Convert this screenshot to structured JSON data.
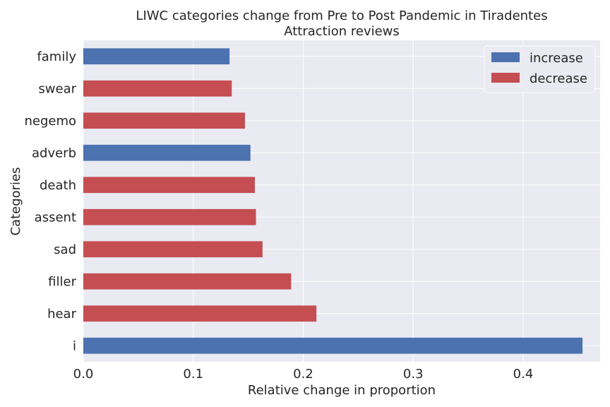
{
  "chart_data": {
    "type": "bar",
    "orientation": "horizontal",
    "title_line1": "LIWC categories change from Pre to Post Pandemic in Tiradentes",
    "title_line2": "Attraction reviews",
    "xlabel": "Relative change in proportion",
    "ylabel": "Categories",
    "xlim": [
      0,
      0.47
    ],
    "xticks": [
      0.0,
      0.1,
      0.2,
      0.3,
      0.4
    ],
    "xtick_labels": [
      "0.0",
      "0.1",
      "0.2",
      "0.3",
      "0.4"
    ],
    "grid": true,
    "legend_position": "top-right",
    "categories": [
      "i",
      "hear",
      "filler",
      "sad",
      "assent",
      "death",
      "adverb",
      "negemo",
      "swear",
      "family"
    ],
    "values": [
      0.454,
      0.212,
      0.189,
      0.163,
      0.157,
      0.156,
      0.152,
      0.147,
      0.135,
      0.133
    ],
    "direction": [
      "increase",
      "decrease",
      "decrease",
      "decrease",
      "decrease",
      "decrease",
      "increase",
      "decrease",
      "decrease",
      "increase"
    ],
    "legend": [
      {
        "name": "increase",
        "color": "#4c72b0"
      },
      {
        "name": "decrease",
        "color": "#c44e52"
      }
    ]
  },
  "colors": {
    "plot_background": "#eaeaf2",
    "grid": "#ffffff"
  }
}
